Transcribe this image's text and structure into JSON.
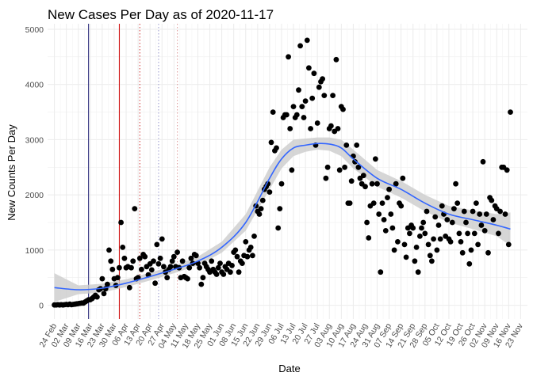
{
  "chart_data": {
    "type": "scatter",
    "title": "New Cases Per Day as of 2020-11-17",
    "xlabel": "Date",
    "ylabel": "New Counts Per Day",
    "xlim": [
      "2020-02-20",
      "2020-11-27"
    ],
    "ylim": [
      -250,
      5100
    ],
    "y_ticks": [
      0,
      1000,
      2000,
      3000,
      4000,
      5000
    ],
    "x_ticks": [
      "2020-02-24",
      "2020-03-02",
      "2020-03-09",
      "2020-03-16",
      "2020-03-23",
      "2020-03-30",
      "2020-04-06",
      "2020-04-13",
      "2020-04-20",
      "2020-04-27",
      "2020-05-04",
      "2020-05-11",
      "2020-05-18",
      "2020-05-25",
      "2020-06-01",
      "2020-06-08",
      "2020-06-15",
      "2020-06-22",
      "2020-06-29",
      "2020-07-06",
      "2020-07-13",
      "2020-07-20",
      "2020-07-27",
      "2020-08-03",
      "2020-08-10",
      "2020-08-17",
      "2020-08-24",
      "2020-08-31",
      "2020-09-07",
      "2020-09-14",
      "2020-09-21",
      "2020-09-28",
      "2020-10-05",
      "2020-10-12",
      "2020-10-19",
      "2020-10-26",
      "2020-11-02",
      "2020-11-09",
      "2020-11-16",
      "2020-11-23"
    ],
    "x_tick_labels": [
      "24 Feb",
      "02 Mar",
      "09 Mar",
      "16 Mar",
      "23 Mar",
      "30 Mar",
      "06 Apr",
      "13 Apr",
      "20 Apr",
      "27 Apr",
      "04 May",
      "11 May",
      "18 May",
      "25 May",
      "01 Jun",
      "08 Jun",
      "15 Jun",
      "22 Jun",
      "29 Jun",
      "06 Jul",
      "13 Jul",
      "20 Jul",
      "27 Jul",
      "03 Aug",
      "10 Aug",
      "17 Aug",
      "24 Aug",
      "31 Aug",
      "07 Sep",
      "14 Sep",
      "21 Sep",
      "28 Sep",
      "05 Oct",
      "12 Oct",
      "19 Oct",
      "26 Oct",
      "02 Nov",
      "09 Nov",
      "16 Nov",
      "23 Nov"
    ],
    "grid": true,
    "legend": "none",
    "vlines": [
      {
        "x": "2020-03-15",
        "color": "#191970",
        "style": "solid"
      },
      {
        "x": "2020-04-02",
        "color": "#cc0000",
        "style": "solid"
      },
      {
        "x": "2020-04-14",
        "color": "#cc3333",
        "style": "dotted"
      },
      {
        "x": "2020-04-25",
        "color": "#9999cc",
        "style": "dotted"
      },
      {
        "x": "2020-05-06",
        "color": "#dd9999",
        "style": "dotted"
      }
    ],
    "points_color": "#000000",
    "points": [
      [
        "2020-02-24",
        5
      ],
      [
        "2020-02-25",
        5
      ],
      [
        "2020-02-26",
        10
      ],
      [
        "2020-02-27",
        5
      ],
      [
        "2020-02-28",
        10
      ],
      [
        "2020-02-29",
        5
      ],
      [
        "2020-03-01",
        10
      ],
      [
        "2020-03-02",
        15
      ],
      [
        "2020-03-03",
        10
      ],
      [
        "2020-03-04",
        20
      ],
      [
        "2020-03-05",
        10
      ],
      [
        "2020-03-06",
        15
      ],
      [
        "2020-03-07",
        20
      ],
      [
        "2020-03-08",
        25
      ],
      [
        "2020-03-09",
        30
      ],
      [
        "2020-03-10",
        35
      ],
      [
        "2020-03-11",
        40
      ],
      [
        "2020-03-12",
        40
      ],
      [
        "2020-03-13",
        60
      ],
      [
        "2020-03-14",
        80
      ],
      [
        "2020-03-15",
        100
      ],
      [
        "2020-03-16",
        100
      ],
      [
        "2020-03-17",
        120
      ],
      [
        "2020-03-18",
        150
      ],
      [
        "2020-03-19",
        180
      ],
      [
        "2020-03-20",
        150
      ],
      [
        "2020-03-21",
        280
      ],
      [
        "2020-03-22",
        300
      ],
      [
        "2020-03-23",
        480
      ],
      [
        "2020-03-24",
        210
      ],
      [
        "2020-03-25",
        300
      ],
      [
        "2020-03-26",
        380
      ],
      [
        "2020-03-27",
        1000
      ],
      [
        "2020-03-28",
        800
      ],
      [
        "2020-03-29",
        650
      ],
      [
        "2020-03-30",
        480
      ],
      [
        "2020-03-31",
        360
      ],
      [
        "2020-04-01",
        500
      ],
      [
        "2020-04-02",
        680
      ],
      [
        "2020-04-03",
        1500
      ],
      [
        "2020-04-04",
        1050
      ],
      [
        "2020-04-05",
        850
      ],
      [
        "2020-04-06",
        680
      ],
      [
        "2020-04-07",
        700
      ],
      [
        "2020-04-08",
        320
      ],
      [
        "2020-04-09",
        680
      ],
      [
        "2020-04-10",
        800
      ],
      [
        "2020-04-11",
        1750
      ],
      [
        "2020-04-12",
        480
      ],
      [
        "2020-04-13",
        500
      ],
      [
        "2020-04-14",
        850
      ],
      [
        "2020-04-15",
        650
      ],
      [
        "2020-04-16",
        920
      ],
      [
        "2020-04-17",
        880
      ],
      [
        "2020-04-18",
        700
      ],
      [
        "2020-04-19",
        550
      ],
      [
        "2020-04-20",
        750
      ],
      [
        "2020-04-21",
        640
      ],
      [
        "2020-04-22",
        800
      ],
      [
        "2020-04-23",
        400
      ],
      [
        "2020-04-24",
        1100
      ],
      [
        "2020-04-25",
        750
      ],
      [
        "2020-04-26",
        850
      ],
      [
        "2020-04-27",
        1200
      ],
      [
        "2020-04-28",
        700
      ],
      [
        "2020-04-29",
        600
      ],
      [
        "2020-04-30",
        500
      ],
      [
        "2020-05-01",
        650
      ],
      [
        "2020-05-02",
        700
      ],
      [
        "2020-05-03",
        800
      ],
      [
        "2020-05-04",
        880
      ],
      [
        "2020-05-05",
        700
      ],
      [
        "2020-05-06",
        960
      ],
      [
        "2020-05-07",
        680
      ],
      [
        "2020-05-08",
        500
      ],
      [
        "2020-05-09",
        800
      ],
      [
        "2020-05-10",
        520
      ],
      [
        "2020-05-11",
        500
      ],
      [
        "2020-05-12",
        480
      ],
      [
        "2020-05-13",
        680
      ],
      [
        "2020-05-14",
        850
      ],
      [
        "2020-05-15",
        760
      ],
      [
        "2020-05-16",
        920
      ],
      [
        "2020-05-17",
        900
      ],
      [
        "2020-05-18",
        760
      ],
      [
        "2020-05-19",
        680
      ],
      [
        "2020-05-20",
        380
      ],
      [
        "2020-05-21",
        500
      ],
      [
        "2020-05-22",
        760
      ],
      [
        "2020-05-23",
        700
      ],
      [
        "2020-05-24",
        650
      ],
      [
        "2020-05-25",
        600
      ],
      [
        "2020-05-26",
        800
      ],
      [
        "2020-05-27",
        650
      ],
      [
        "2020-05-28",
        600
      ],
      [
        "2020-05-29",
        560
      ],
      [
        "2020-05-30",
        680
      ],
      [
        "2020-05-31",
        760
      ],
      [
        "2020-06-01",
        600
      ],
      [
        "2020-06-02",
        560
      ],
      [
        "2020-06-03",
        700
      ],
      [
        "2020-06-04",
        650
      ],
      [
        "2020-06-05",
        760
      ],
      [
        "2020-06-06",
        600
      ],
      [
        "2020-06-07",
        720
      ],
      [
        "2020-06-08",
        960
      ],
      [
        "2020-06-09",
        1000
      ],
      [
        "2020-06-10",
        880
      ],
      [
        "2020-06-11",
        600
      ],
      [
        "2020-06-12",
        800
      ],
      [
        "2020-06-13",
        760
      ],
      [
        "2020-06-14",
        900
      ],
      [
        "2020-06-15",
        1150
      ],
      [
        "2020-06-16",
        880
      ],
      [
        "2020-06-17",
        1000
      ],
      [
        "2020-06-18",
        1050
      ],
      [
        "2020-06-19",
        900
      ],
      [
        "2020-06-20",
        1250
      ],
      [
        "2020-06-21",
        1800
      ],
      [
        "2020-06-22",
        1700
      ],
      [
        "2020-06-23",
        1650
      ],
      [
        "2020-06-24",
        1750
      ],
      [
        "2020-06-25",
        1900
      ],
      [
        "2020-06-26",
        2100
      ],
      [
        "2020-06-27",
        2150
      ],
      [
        "2020-06-28",
        2200
      ],
      [
        "2020-06-29",
        2050
      ],
      [
        "2020-06-30",
        2950
      ],
      [
        "2020-07-01",
        3500
      ],
      [
        "2020-07-02",
        2800
      ],
      [
        "2020-07-03",
        2850
      ],
      [
        "2020-07-04",
        1400
      ],
      [
        "2020-07-05",
        1750
      ],
      [
        "2020-07-06",
        2200
      ],
      [
        "2020-07-07",
        3400
      ],
      [
        "2020-07-08",
        3450
      ],
      [
        "2020-07-09",
        3450
      ],
      [
        "2020-07-10",
        4500
      ],
      [
        "2020-07-11",
        3200
      ],
      [
        "2020-07-12",
        2450
      ],
      [
        "2020-07-13",
        3600
      ],
      [
        "2020-07-14",
        3400
      ],
      [
        "2020-07-15",
        3450
      ],
      [
        "2020-07-16",
        3900
      ],
      [
        "2020-07-17",
        4700
      ],
      [
        "2020-07-18",
        3600
      ],
      [
        "2020-07-19",
        3400
      ],
      [
        "2020-07-20",
        3700
      ],
      [
        "2020-07-21",
        4800
      ],
      [
        "2020-07-22",
        4300
      ],
      [
        "2020-07-23",
        3200
      ],
      [
        "2020-07-24",
        3750
      ],
      [
        "2020-07-25",
        4200
      ],
      [
        "2020-07-26",
        2900
      ],
      [
        "2020-07-27",
        3300
      ],
      [
        "2020-07-28",
        3950
      ],
      [
        "2020-07-29",
        4050
      ],
      [
        "2020-07-30",
        4100
      ],
      [
        "2020-07-31",
        3800
      ],
      [
        "2020-08-01",
        2300
      ],
      [
        "2020-08-02",
        2500
      ],
      [
        "2020-08-03",
        3200
      ],
      [
        "2020-08-04",
        3250
      ],
      [
        "2020-08-05",
        3800
      ],
      [
        "2020-08-06",
        3150
      ],
      [
        "2020-08-07",
        4450
      ],
      [
        "2020-08-08",
        3200
      ],
      [
        "2020-08-09",
        2450
      ],
      [
        "2020-08-10",
        3600
      ],
      [
        "2020-08-11",
        3550
      ],
      [
        "2020-08-12",
        2500
      ],
      [
        "2020-08-13",
        2900
      ],
      [
        "2020-08-14",
        1850
      ],
      [
        "2020-08-15",
        1850
      ],
      [
        "2020-08-16",
        2250
      ],
      [
        "2020-08-17",
        2700
      ],
      [
        "2020-08-18",
        2600
      ],
      [
        "2020-08-19",
        2900
      ],
      [
        "2020-08-20",
        2500
      ],
      [
        "2020-08-21",
        2300
      ],
      [
        "2020-08-22",
        2200
      ],
      [
        "2020-08-23",
        2350
      ],
      [
        "2020-08-24",
        2150
      ],
      [
        "2020-08-25",
        1500
      ],
      [
        "2020-08-26",
        1220
      ],
      [
        "2020-08-27",
        1800
      ],
      [
        "2020-08-28",
        2200
      ],
      [
        "2020-08-29",
        1850
      ],
      [
        "2020-08-30",
        2650
      ],
      [
        "2020-08-31",
        2200
      ],
      [
        "2020-09-01",
        1650
      ],
      [
        "2020-09-02",
        600
      ],
      [
        "2020-09-03",
        1850
      ],
      [
        "2020-09-04",
        1550
      ],
      [
        "2020-09-05",
        1350
      ],
      [
        "2020-09-06",
        1950
      ],
      [
        "2020-09-07",
        2100
      ],
      [
        "2020-09-08",
        1650
      ],
      [
        "2020-09-09",
        1400
      ],
      [
        "2020-09-10",
        1000
      ],
      [
        "2020-09-11",
        2200
      ],
      [
        "2020-09-12",
        1150
      ],
      [
        "2020-09-13",
        1850
      ],
      [
        "2020-09-14",
        1800
      ],
      [
        "2020-09-15",
        2300
      ],
      [
        "2020-09-16",
        1100
      ],
      [
        "2020-09-17",
        870
      ],
      [
        "2020-09-18",
        1400
      ],
      [
        "2020-09-19",
        1300
      ],
      [
        "2020-09-20",
        1450
      ],
      [
        "2020-09-21",
        1400
      ],
      [
        "2020-09-22",
        800
      ],
      [
        "2020-09-23",
        1050
      ],
      [
        "2020-09-24",
        600
      ],
      [
        "2020-09-25",
        1250
      ],
      [
        "2020-09-26",
        1400
      ],
      [
        "2020-09-27",
        1500
      ],
      [
        "2020-09-28",
        1300
      ],
      [
        "2020-09-29",
        1700
      ],
      [
        "2020-09-30",
        1100
      ],
      [
        "2020-10-01",
        900
      ],
      [
        "2020-10-02",
        800
      ],
      [
        "2020-10-03",
        1200
      ],
      [
        "2020-10-04",
        1600
      ],
      [
        "2020-10-05",
        1000
      ],
      [
        "2020-10-06",
        1450
      ],
      [
        "2020-10-07",
        1200
      ],
      [
        "2020-10-08",
        1800
      ],
      [
        "2020-10-09",
        1650
      ],
      [
        "2020-10-10",
        1250
      ],
      [
        "2020-10-11",
        1550
      ],
      [
        "2020-10-12",
        1200
      ],
      [
        "2020-10-13",
        1150
      ],
      [
        "2020-10-14",
        1500
      ],
      [
        "2020-10-15",
        1750
      ],
      [
        "2020-10-16",
        2200
      ],
      [
        "2020-10-17",
        1850
      ],
      [
        "2020-10-18",
        1300
      ],
      [
        "2020-10-19",
        1150
      ],
      [
        "2020-10-20",
        950
      ],
      [
        "2020-10-21",
        1700
      ],
      [
        "2020-10-22",
        1500
      ],
      [
        "2020-10-23",
        1300
      ],
      [
        "2020-10-24",
        750
      ],
      [
        "2020-10-25",
        1000
      ],
      [
        "2020-10-26",
        1700
      ],
      [
        "2020-10-27",
        1300
      ],
      [
        "2020-10-28",
        1850
      ],
      [
        "2020-10-29",
        1100
      ],
      [
        "2020-10-30",
        1650
      ],
      [
        "2020-10-31",
        1450
      ],
      [
        "2020-11-01",
        2600
      ],
      [
        "2020-11-02",
        1350
      ],
      [
        "2020-11-03",
        1650
      ],
      [
        "2020-11-04",
        950
      ],
      [
        "2020-11-05",
        1950
      ],
      [
        "2020-11-06",
        1900
      ],
      [
        "2020-11-07",
        1550
      ],
      [
        "2020-11-08",
        1800
      ],
      [
        "2020-11-09",
        1750
      ],
      [
        "2020-11-10",
        1300
      ],
      [
        "2020-11-11",
        1700
      ],
      [
        "2020-11-12",
        2500
      ],
      [
        "2020-11-13",
        2500
      ],
      [
        "2020-11-14",
        1650
      ],
      [
        "2020-11-15",
        2450
      ],
      [
        "2020-11-16",
        1100
      ],
      [
        "2020-11-17",
        3500
      ]
    ],
    "smooth": {
      "color": "#3366ff",
      "band_color": "#cccccc",
      "x": [
        "2020-02-24",
        "2020-03-09",
        "2020-03-23",
        "2020-04-06",
        "2020-04-20",
        "2020-05-04",
        "2020-05-18",
        "2020-06-01",
        "2020-06-15",
        "2020-06-29",
        "2020-07-06",
        "2020-07-13",
        "2020-07-20",
        "2020-07-27",
        "2020-08-03",
        "2020-08-10",
        "2020-08-17",
        "2020-08-31",
        "2020-09-14",
        "2020-09-28",
        "2020-10-12",
        "2020-10-26",
        "2020-11-09",
        "2020-11-17"
      ],
      "y": [
        320,
        280,
        310,
        400,
        520,
        650,
        800,
        1050,
        1500,
        2300,
        2650,
        2850,
        2900,
        2930,
        2920,
        2850,
        2650,
        2300,
        2100,
        1850,
        1650,
        1550,
        1450,
        1380
      ],
      "lower": [
        60,
        200,
        230,
        330,
        450,
        580,
        720,
        950,
        1350,
        2100,
        2480,
        2700,
        2780,
        2820,
        2800,
        2700,
        2480,
        2150,
        1950,
        1700,
        1500,
        1380,
        1250,
        1080
      ],
      "upper": [
        580,
        360,
        390,
        470,
        590,
        720,
        880,
        1150,
        1650,
        2500,
        2820,
        3000,
        3020,
        3040,
        3040,
        3000,
        2820,
        2450,
        2250,
        2000,
        1800,
        1720,
        1650,
        1680
      ]
    }
  }
}
